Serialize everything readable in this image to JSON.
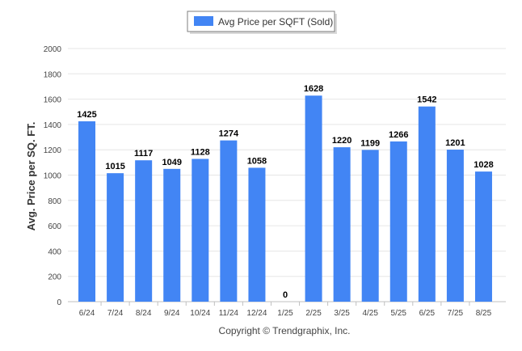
{
  "colors": {
    "bar": "#4285f4"
  },
  "footer": {
    "copyright": "Copyright © Trendgraphix, Inc."
  },
  "chart_data": {
    "type": "bar",
    "categories": [
      "6/24",
      "7/24",
      "8/24",
      "9/24",
      "10/24",
      "11/24",
      "12/24",
      "1/25",
      "2/25",
      "3/25",
      "4/25",
      "5/25",
      "6/25",
      "7/25",
      "8/25"
    ],
    "series": [
      {
        "name": "Avg Price per SQFT (Sold)",
        "values": [
          1425,
          1015,
          1117,
          1049,
          1128,
          1274,
          1058,
          0,
          1628,
          1220,
          1199,
          1266,
          1542,
          1201,
          1028
        ]
      }
    ],
    "title": "",
    "xlabel": "",
    "ylabel": "Avg. Price per SQ. FT.",
    "ylim": [
      0,
      2000
    ],
    "yticks": [
      0,
      200,
      400,
      600,
      800,
      1000,
      1200,
      1400,
      1600,
      1800,
      2000
    ],
    "grid": true,
    "legend": "top-center",
    "data_labels": true
  }
}
